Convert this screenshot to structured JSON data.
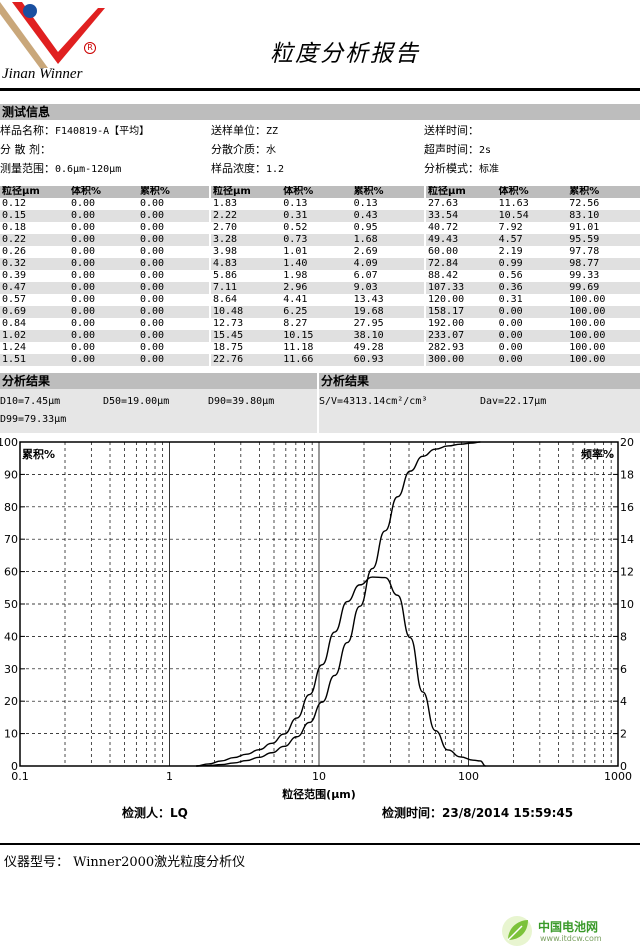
{
  "header": {
    "company": "Jinan Winner",
    "registered_mark": "R",
    "title": "粒度分析报告"
  },
  "test_info": {
    "heading": "测试信息",
    "rows": [
      [
        {
          "label": "样品名称：",
          "value": "F140819-A【平均】"
        },
        {
          "label": "送样单位：",
          "value": "ZZ"
        },
        {
          "label": "送样时间：",
          "value": ""
        }
      ],
      [
        {
          "label": "分 散 剂：",
          "value": ""
        },
        {
          "label": "分散介质：",
          "value": "水"
        },
        {
          "label": "超声时间：",
          "value": "2s"
        }
      ],
      [
        {
          "label": "测量范围：",
          "value": "0.6μm-120μm"
        },
        {
          "label": "样品浓度：",
          "value": "1.2"
        },
        {
          "label": "分析模式：",
          "value": "标准"
        }
      ]
    ]
  },
  "table": {
    "headers": [
      "粒径μm",
      "体积%",
      "累积%"
    ],
    "blocks": [
      [
        [
          "0.12",
          "0.00",
          "0.00"
        ],
        [
          "0.15",
          "0.00",
          "0.00"
        ],
        [
          "0.18",
          "0.00",
          "0.00"
        ],
        [
          "0.22",
          "0.00",
          "0.00"
        ],
        [
          "0.26",
          "0.00",
          "0.00"
        ],
        [
          "0.32",
          "0.00",
          "0.00"
        ],
        [
          "0.39",
          "0.00",
          "0.00"
        ],
        [
          "0.47",
          "0.00",
          "0.00"
        ],
        [
          "0.57",
          "0.00",
          "0.00"
        ],
        [
          "0.69",
          "0.00",
          "0.00"
        ],
        [
          "0.84",
          "0.00",
          "0.00"
        ],
        [
          "1.02",
          "0.00",
          "0.00"
        ],
        [
          "1.24",
          "0.00",
          "0.00"
        ],
        [
          "1.51",
          "0.00",
          "0.00"
        ]
      ],
      [
        [
          "1.83",
          "0.13",
          "0.13"
        ],
        [
          "2.22",
          "0.31",
          "0.43"
        ],
        [
          "2.70",
          "0.52",
          "0.95"
        ],
        [
          "3.28",
          "0.73",
          "1.68"
        ],
        [
          "3.98",
          "1.01",
          "2.69"
        ],
        [
          "4.83",
          "1.40",
          "4.09"
        ],
        [
          "5.86",
          "1.98",
          "6.07"
        ],
        [
          "7.11",
          "2.96",
          "9.03"
        ],
        [
          "8.64",
          "4.41",
          "13.43"
        ],
        [
          "10.48",
          "6.25",
          "19.68"
        ],
        [
          "12.73",
          "8.27",
          "27.95"
        ],
        [
          "15.45",
          "10.15",
          "38.10"
        ],
        [
          "18.75",
          "11.18",
          "49.28"
        ],
        [
          "22.76",
          "11.66",
          "60.93"
        ]
      ],
      [
        [
          "27.63",
          "11.63",
          "72.56"
        ],
        [
          "33.54",
          "10.54",
          "83.10"
        ],
        [
          "40.72",
          "7.92",
          "91.01"
        ],
        [
          "49.43",
          "4.57",
          "95.59"
        ],
        [
          "60.00",
          "2.19",
          "97.78"
        ],
        [
          "72.84",
          "0.99",
          "98.77"
        ],
        [
          "88.42",
          "0.56",
          "99.33"
        ],
        [
          "107.33",
          "0.36",
          "99.69"
        ],
        [
          "120.00",
          "0.31",
          "100.00"
        ],
        [
          "158.17",
          "0.00",
          "100.00"
        ],
        [
          "192.00",
          "0.00",
          "100.00"
        ],
        [
          "233.07",
          "0.00",
          "100.00"
        ],
        [
          "282.93",
          "0.00",
          "100.00"
        ],
        [
          "300.00",
          "0.00",
          "100.00"
        ]
      ]
    ]
  },
  "results": {
    "heading_left": "分析结果",
    "heading_right": "分析结果",
    "d10": "D10=7.45μm",
    "d50": "D50=19.00μm",
    "d90": "D90=39.80μm",
    "d99": "D99=79.33μm",
    "sv": "S/V=4313.14cm²/cm³",
    "dav": "Dav=22.17μm"
  },
  "chart_data": {
    "type": "line",
    "xlabel": "粒径范围(μm)",
    "ylabel_left": "累积%",
    "ylabel_right": "频率%",
    "x_scale": "log",
    "xlim": [
      0.1,
      1000
    ],
    "ylim_left": [
      0,
      100
    ],
    "ylim_right": [
      0,
      20
    ],
    "x_ticks": [
      "0.1",
      "1",
      "10",
      "100",
      "1000"
    ],
    "y_ticks_left": [
      "0",
      "10",
      "20",
      "30",
      "40",
      "50",
      "60",
      "70",
      "80",
      "90",
      "100"
    ],
    "y_ticks_right": [
      "0",
      "2",
      "4",
      "6",
      "8",
      "10",
      "12",
      "14",
      "16",
      "18",
      "20"
    ],
    "grid": true,
    "series": [
      {
        "axis": "left",
        "x": [
          1.51,
          1.83,
          2.22,
          2.7,
          3.28,
          3.98,
          4.83,
          5.86,
          7.11,
          8.64,
          10.48,
          12.73,
          15.45,
          18.75,
          22.76,
          27.63,
          33.54,
          40.72,
          49.43,
          60.0,
          72.84,
          88.42,
          107.33,
          120.0
        ],
        "y": [
          0,
          0.13,
          0.43,
          0.95,
          1.68,
          2.69,
          4.09,
          6.07,
          9.03,
          13.43,
          19.68,
          27.95,
          38.1,
          49.28,
          60.93,
          72.56,
          83.1,
          91.01,
          95.59,
          97.78,
          98.77,
          99.33,
          99.69,
          100.0
        ]
      },
      {
        "axis": "right",
        "x": [
          1.51,
          1.83,
          2.22,
          2.7,
          3.28,
          3.98,
          4.83,
          5.86,
          7.11,
          8.64,
          10.48,
          12.73,
          15.45,
          18.75,
          22.76,
          27.63,
          33.54,
          40.72,
          49.43,
          60.0,
          72.84,
          88.42,
          107.33,
          120.0,
          130.0
        ],
        "y": [
          0,
          0.13,
          0.31,
          0.52,
          0.73,
          1.01,
          1.4,
          1.98,
          2.96,
          4.41,
          6.25,
          8.27,
          10.15,
          11.18,
          11.66,
          11.63,
          10.54,
          7.92,
          4.57,
          2.19,
          0.99,
          0.56,
          0.36,
          0.31,
          0
        ]
      }
    ]
  },
  "sign": {
    "inspector": "检测人：LQ",
    "time": "检测时间：23/8/2014 15:59:45"
  },
  "footer": {
    "instrument": "仪器型号：  Winner2000激光粒度分析仪"
  },
  "watermark": {
    "site": "中国电池网",
    "url": "www.itdcw.com"
  }
}
